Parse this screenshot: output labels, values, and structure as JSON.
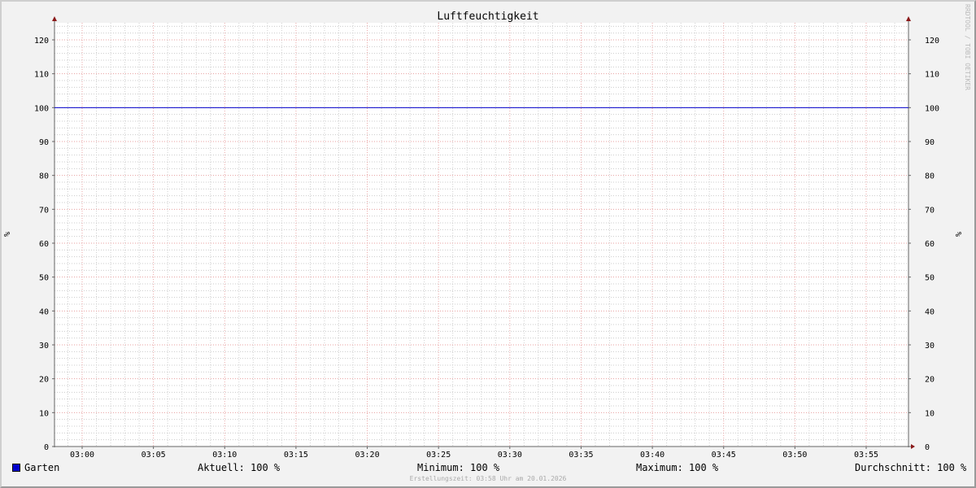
{
  "chart_data": {
    "type": "line",
    "title": "Luftfeuchtigkeit",
    "ylabel": "%",
    "ylabel_right": "%",
    "ylim": [
      0,
      125
    ],
    "yticks": [
      0,
      10,
      20,
      30,
      40,
      50,
      60,
      70,
      80,
      90,
      100,
      110,
      120
    ],
    "xlim": [
      "02:58",
      "03:58"
    ],
    "xticks": [
      "03:00",
      "03:05",
      "03:10",
      "03:15",
      "03:20",
      "03:25",
      "03:30",
      "03:35",
      "03:40",
      "03:45",
      "03:50",
      "03:55"
    ],
    "grid": true,
    "series": [
      {
        "name": "Garten",
        "color": "#0000cc",
        "x": [
          "02:58",
          "03:58"
        ],
        "values": [
          100,
          100
        ]
      }
    ],
    "colors": {
      "major_grid": "#e8a0a0",
      "minor_grid": "#cccccc",
      "axis": "#666666",
      "arrow": "#8b1a1a",
      "plot_bg": "#ffffff",
      "canvas_bg": "#f2f2f2"
    }
  },
  "legend": {
    "series_label": "Garten",
    "current": "Aktuell: 100 %",
    "minimum": "Minimum: 100 %",
    "maximum": "Maximum: 100 %",
    "average": "Durchschnitt: 100 %"
  },
  "footer": {
    "timestamp": "Erstellungszeit: 03:58 Uhr am 20.01.2026"
  },
  "watermark": "RRDTOOL / TOBI OETIKER"
}
